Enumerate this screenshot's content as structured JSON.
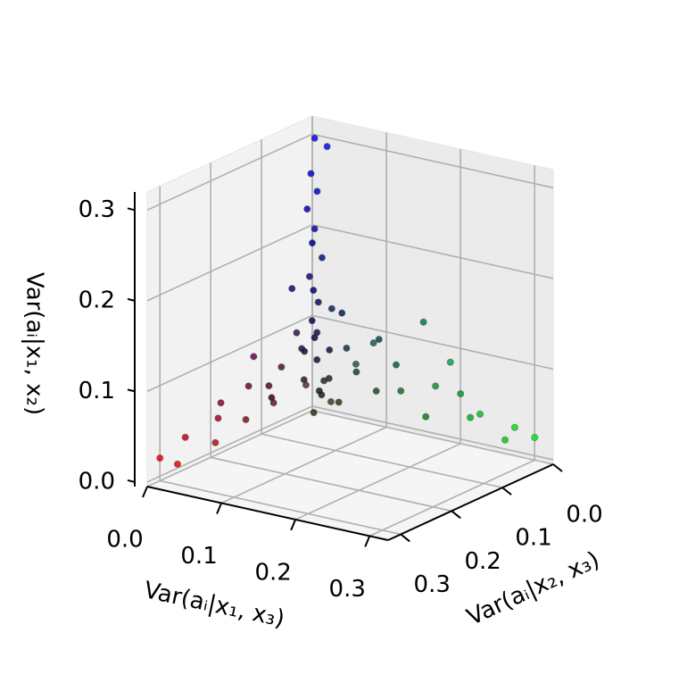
{
  "chart_data": {
    "type": "scatter3d",
    "xlabel": "Var(aᵢ|x₁, x₃)",
    "ylabel": "Var(aᵢ|x₂, x₃)",
    "zlabel": "Var(aᵢ|x₁, x₂)",
    "xlim": [
      0,
      0.325
    ],
    "ylim": [
      0,
      0.325
    ],
    "zlim": [
      -0.005,
      0.32
    ],
    "xticks": [
      {
        "value": 0,
        "label": "0.0"
      },
      0.1,
      0.2,
      0.3
    ],
    "yticks": [
      {
        "value": 0,
        "label": "0.0"
      },
      0.1,
      0.2,
      0.3
    ],
    "zticks": [
      {
        "value": 0,
        "label": "0.0"
      },
      0.1,
      0.2,
      0.3
    ],
    "grid": true,
    "x": [
      0.01,
      0.02,
      0.005,
      0.01,
      0.0,
      0.01,
      0.02,
      0.01,
      0.005,
      0.015,
      0.01,
      0.02,
      0.01,
      0.03,
      0.01,
      0.02,
      0.0,
      0.04,
      0.0,
      0.0,
      0.01,
      0.0,
      0.02,
      0.01,
      0.0,
      0.02,
      0.01,
      0.03,
      0.01,
      0.02,
      0.0,
      0.03,
      0.02,
      0.04,
      0.05,
      0.01,
      0.3,
      0.28,
      0.26,
      0.24,
      0.22,
      0.2,
      0.18,
      0.16,
      0.14,
      0.12,
      0.1,
      0.09,
      0.08,
      0.06,
      0.05,
      0.07,
      0.15,
      0.11,
      0.2,
      0.05,
      0.03,
      0.08,
      0.06,
      0.1,
      0.04,
      0.02
    ],
    "y": [
      0.01,
      0.0,
      0.01,
      0.005,
      0.01,
      0.01,
      0.01,
      0.02,
      0.005,
      0.01,
      0.015,
      0.02,
      0.01,
      0.01,
      0.03,
      0.02,
      0.0,
      0.0,
      0.04,
      0.3,
      0.28,
      0.25,
      0.22,
      0.2,
      0.18,
      0.16,
      0.14,
      0.12,
      0.1,
      0.09,
      0.08,
      0.06,
      0.05,
      0.04,
      0.07,
      0.13,
      0.0,
      0.01,
      0.0,
      0.02,
      0.01,
      0.0,
      0.02,
      0.01,
      0.03,
      0.01,
      0.02,
      0.0,
      0.03,
      0.02,
      0.04,
      0.05,
      0.0,
      0.04,
      0.02,
      0.05,
      0.03,
      0.08,
      0.1,
      0.06,
      0.02,
      0.06
    ],
    "z": [
      0.3,
      0.29,
      0.26,
      0.24,
      0.22,
      0.2,
      0.17,
      0.15,
      0.13,
      0.12,
      0.1,
      0.09,
      0.08,
      0.07,
      0.07,
      0.06,
      0.18,
      0.11,
      0.14,
      0.02,
      0.01,
      0.03,
      0.02,
      0.04,
      0.05,
      0.03,
      0.06,
      0.04,
      0.05,
      0.07,
      0.03,
      0.05,
      0.08,
      0.03,
      0.02,
      0.09,
      0.02,
      0.03,
      0.01,
      0.04,
      0.03,
      0.05,
      0.06,
      0.02,
      0.05,
      0.07,
      0.04,
      0.09,
      0.06,
      0.08,
      0.05,
      0.03,
      0.12,
      0.1,
      0.09,
      0.05,
      0.03,
      0.04,
      0.06,
      0.08,
      0.12,
      0.1
    ]
  }
}
